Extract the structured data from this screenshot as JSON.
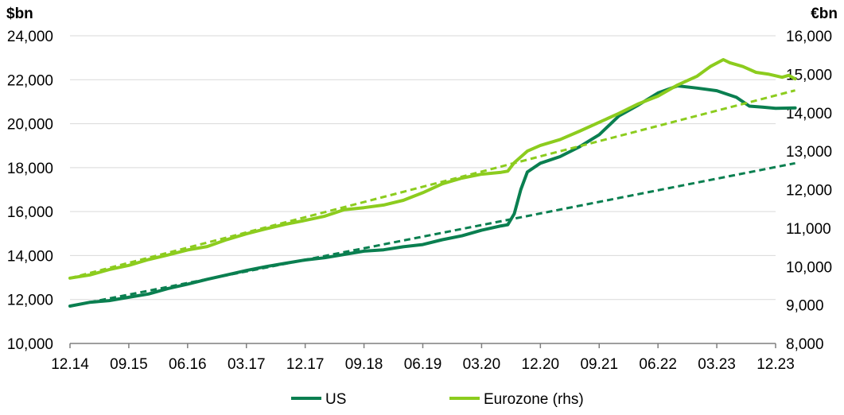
{
  "chart_data": {
    "type": "line",
    "left_axis_unit": "$bn",
    "right_axis_unit": "€bn",
    "x_tick_labels": [
      "12.14",
      "09.15",
      "06.16",
      "03.17",
      "12.17",
      "09.18",
      "06.19",
      "03.20",
      "12.20",
      "09.21",
      "06.22",
      "03.23",
      "12.23"
    ],
    "x_range": [
      0,
      108
    ],
    "left_ylim": [
      10000,
      24000
    ],
    "left_y_ticks": [
      "10,000",
      "12,000",
      "14,000",
      "16,000",
      "18,000",
      "20,000",
      "22,000",
      "24,000"
    ],
    "right_ylim": [
      8000,
      16000
    ],
    "right_y_ticks": [
      "8,000",
      "9,000",
      "10,000",
      "11,000",
      "12,000",
      "13,000",
      "14,000",
      "15,000",
      "16,000"
    ],
    "grid": "horizontal",
    "legend_position": "bottom",
    "colors": {
      "us": "#0a7f50",
      "eurozone": "#8ccc1e",
      "grid": "#d9d9d9"
    },
    "series": [
      {
        "name": "US",
        "axis": "left",
        "points": [
          [
            0,
            11700
          ],
          [
            3,
            11870
          ],
          [
            6,
            11950
          ],
          [
            9,
            12100
          ],
          [
            12,
            12250
          ],
          [
            15,
            12500
          ],
          [
            18,
            12700
          ],
          [
            21,
            12920
          ],
          [
            24,
            13120
          ],
          [
            27,
            13320
          ],
          [
            30,
            13500
          ],
          [
            33,
            13650
          ],
          [
            36,
            13800
          ],
          [
            39,
            13900
          ],
          [
            42,
            14050
          ],
          [
            45,
            14200
          ],
          [
            48,
            14260
          ],
          [
            51,
            14400
          ],
          [
            54,
            14500
          ],
          [
            57,
            14720
          ],
          [
            60,
            14900
          ],
          [
            63,
            15150
          ],
          [
            66,
            15350
          ],
          [
            67,
            15400
          ],
          [
            68,
            15900
          ],
          [
            69,
            17000
          ],
          [
            70,
            17800
          ],
          [
            72,
            18200
          ],
          [
            75,
            18500
          ],
          [
            78,
            18950
          ],
          [
            81,
            19500
          ],
          [
            84,
            20350
          ],
          [
            87,
            20850
          ],
          [
            90,
            21400
          ],
          [
            93,
            21720
          ],
          [
            96,
            21620
          ],
          [
            99,
            21500
          ],
          [
            102,
            21200
          ],
          [
            104,
            20800
          ],
          [
            106,
            20750
          ],
          [
            108,
            20700
          ],
          [
            111,
            20720
          ]
        ]
      },
      {
        "name": "Eurozone (rhs)",
        "axis": "right",
        "points": [
          [
            0,
            9700
          ],
          [
            3,
            9780
          ],
          [
            6,
            9920
          ],
          [
            9,
            10030
          ],
          [
            12,
            10180
          ],
          [
            15,
            10300
          ],
          [
            18,
            10430
          ],
          [
            21,
            10520
          ],
          [
            24,
            10700
          ],
          [
            27,
            10850
          ],
          [
            30,
            10980
          ],
          [
            33,
            11100
          ],
          [
            36,
            11200
          ],
          [
            39,
            11310
          ],
          [
            42,
            11480
          ],
          [
            45,
            11530
          ],
          [
            48,
            11600
          ],
          [
            51,
            11720
          ],
          [
            54,
            11920
          ],
          [
            57,
            12150
          ],
          [
            60,
            12300
          ],
          [
            63,
            12400
          ],
          [
            66,
            12450
          ],
          [
            67,
            12480
          ],
          [
            68,
            12700
          ],
          [
            69,
            12850
          ],
          [
            70,
            13000
          ],
          [
            72,
            13150
          ],
          [
            75,
            13300
          ],
          [
            78,
            13520
          ],
          [
            81,
            13750
          ],
          [
            84,
            13980
          ],
          [
            87,
            14230
          ],
          [
            90,
            14430
          ],
          [
            93,
            14720
          ],
          [
            96,
            14950
          ],
          [
            98,
            15200
          ],
          [
            100,
            15380
          ],
          [
            101,
            15300
          ],
          [
            103,
            15200
          ],
          [
            105,
            15050
          ],
          [
            107,
            15000
          ],
          [
            109,
            14920
          ],
          [
            110,
            14970
          ],
          [
            111,
            14880
          ]
        ]
      },
      {
        "name": "US trend",
        "axis": "left",
        "dashed": true,
        "points": [
          [
            3,
            11870
          ],
          [
            111,
            18200
          ]
        ]
      },
      {
        "name": "Eurozone trend",
        "axis": "right",
        "dashed": true,
        "points": [
          [
            0,
            9700
          ],
          [
            111,
            14580
          ]
        ]
      }
    ],
    "legend": [
      {
        "label": "US",
        "color": "#0a7f50"
      },
      {
        "label": "Eurozone (rhs)",
        "color": "#8ccc1e"
      }
    ]
  }
}
